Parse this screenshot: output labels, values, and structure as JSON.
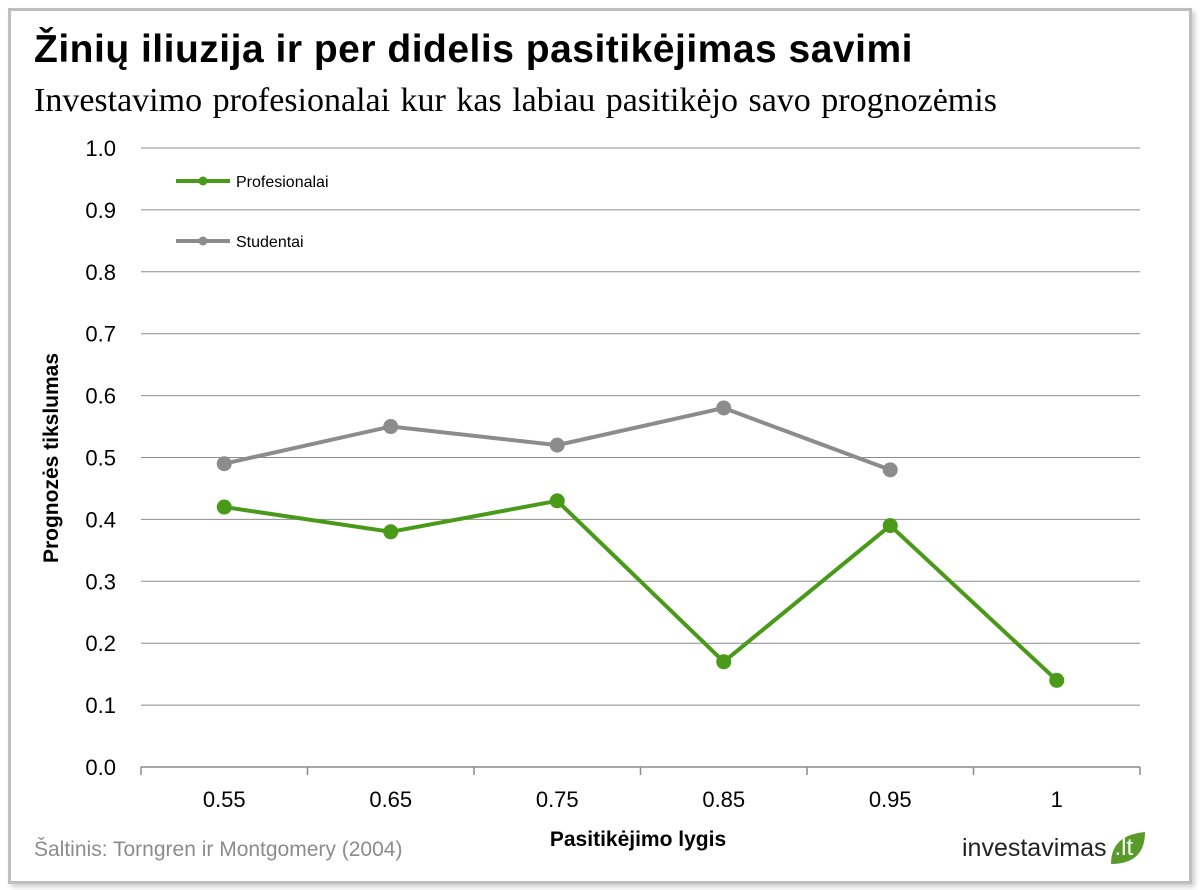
{
  "header": {
    "title": "Žinių iliuzija ir per didelis pasitikėjimas savimi",
    "subtitle": "Investavimo profesionalai kur kas labiau pasitikėjo savo prognozėmis"
  },
  "footer": {
    "source": "Šaltinis: Torngren ir Montgomery (2004)",
    "logo_text": "investavimas",
    "logo_tld": ".lt",
    "logo_color": "#5a9a2a"
  },
  "chart_data": {
    "type": "line",
    "categories": [
      "0.55",
      "0.65",
      "0.75",
      "0.85",
      "0.95",
      "1"
    ],
    "xlabel": "Pasitikėjimo lygis",
    "ylabel": "Prognozės tikslumas",
    "ylim": [
      0,
      1.0
    ],
    "yticks": [
      "0.0",
      "0.1",
      "0.2",
      "0.3",
      "0.4",
      "0.5",
      "0.6",
      "0.7",
      "0.8",
      "0.9",
      "1.0"
    ],
    "grid": true,
    "legend_position": "top-left",
    "series": [
      {
        "name": "Profesionalai",
        "color": "#4a9a1a",
        "values": [
          0.42,
          0.38,
          0.43,
          0.17,
          0.39,
          0.14
        ]
      },
      {
        "name": "Studentai",
        "color": "#8c8c8c",
        "values": [
          0.49,
          0.55,
          0.52,
          0.58,
          0.48,
          null
        ]
      }
    ]
  }
}
